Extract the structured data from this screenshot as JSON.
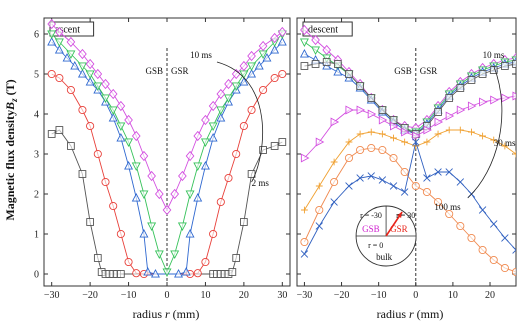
{
  "figure": {
    "ylabel_text": "Magnetic flux density",
    "ylabel_var": "B",
    "ylabel_sub": "z",
    "ylabel_unit": " (T)",
    "xlabel_text": "radius ",
    "xlabel_var": "r",
    "xlabel_unit": " (mm)"
  },
  "chart_data": [
    {
      "type": "line",
      "panel_label": "ascent",
      "xlim": [
        -32,
        32
      ],
      "ylim": [
        -0.3,
        6.4
      ],
      "xticks": [
        -30,
        -20,
        -10,
        0,
        10,
        20,
        30
      ],
      "yticks": [
        0,
        1,
        2,
        3,
        4,
        5,
        6
      ],
      "grid": false,
      "divider_x": 0,
      "region_labels": [
        "GSB",
        "GSR"
      ],
      "annotations": [
        {
          "text": "10 ms",
          "x": 6,
          "y": 5.4
        },
        {
          "text": "2 ms",
          "x": 22,
          "y": 2.2
        }
      ],
      "series": [
        {
          "color": "#555555",
          "marker": "square",
          "x": [
            -30,
            -28,
            -25,
            -22,
            -20,
            -18,
            -17,
            -16,
            -15,
            -14,
            -13,
            -12,
            12,
            13,
            14,
            15,
            16,
            17,
            18,
            20,
            22,
            25,
            28,
            30
          ],
          "y": [
            3.5,
            3.6,
            3.2,
            2.5,
            1.3,
            0.4,
            0.05,
            0,
            0,
            0,
            0,
            0,
            0,
            0,
            0,
            0,
            0,
            0.05,
            0.4,
            1.3,
            2.5,
            3.1,
            3.2,
            3.3
          ]
        },
        {
          "color": "#e8403a",
          "marker": "circle",
          "x": [
            -30,
            -28,
            -25,
            -22,
            -20,
            -18,
            -16,
            -14,
            -12,
            -10,
            -8,
            -6,
            6,
            8,
            10,
            12,
            14,
            16,
            18,
            20,
            22,
            25,
            28,
            30
          ],
          "y": [
            5.0,
            4.9,
            4.6,
            4.1,
            3.7,
            3.0,
            2.3,
            1.7,
            1.0,
            0.3,
            0.02,
            0,
            0,
            0.02,
            0.3,
            1.0,
            1.8,
            2.4,
            3.0,
            3.7,
            4.1,
            4.6,
            4.9,
            5.0
          ]
        },
        {
          "color": "#2f68d0",
          "marker": "triangle",
          "x": [
            -30,
            -28,
            -26,
            -24,
            -22,
            -20,
            -18,
            -16,
            -14,
            -12,
            -10,
            -8,
            -6,
            -5,
            -3,
            3,
            5,
            6,
            8,
            10,
            12,
            14,
            16,
            18,
            20,
            22,
            24,
            26,
            28,
            30
          ],
          "y": [
            5.8,
            5.6,
            5.4,
            5.2,
            5.0,
            4.8,
            4.6,
            4.3,
            3.9,
            3.4,
            2.7,
            1.9,
            1.0,
            0.05,
            0,
            0,
            0.05,
            1.0,
            1.9,
            2.7,
            3.4,
            3.9,
            4.3,
            4.6,
            4.8,
            5.0,
            5.2,
            5.4,
            5.6,
            5.8
          ]
        },
        {
          "color": "#36c25a",
          "marker": "triangle-down",
          "x": [
            -30,
            -28,
            -25,
            -22,
            -20,
            -18,
            -16,
            -14,
            -12,
            -10,
            -8,
            -6,
            -4,
            -2,
            0,
            2,
            4,
            6,
            8,
            10,
            12,
            14,
            16,
            18,
            20,
            22,
            25,
            28,
            30
          ],
          "y": [
            6.0,
            5.8,
            5.5,
            5.2,
            5.0,
            4.7,
            4.4,
            4.1,
            3.7,
            3.3,
            2.7,
            2.0,
            1.2,
            0.5,
            0.05,
            0.5,
            1.2,
            2.0,
            2.7,
            3.3,
            3.7,
            4.1,
            4.4,
            4.7,
            5.0,
            5.2,
            5.5,
            5.8,
            6.0
          ]
        },
        {
          "color": "#d34fe0",
          "marker": "diamond",
          "x": [
            -30,
            -28,
            -25,
            -22,
            -20,
            -18,
            -16,
            -14,
            -12,
            -10,
            -8,
            -6,
            -4,
            -2,
            0,
            2,
            4,
            6,
            8,
            10,
            12,
            14,
            16,
            18,
            20,
            22,
            25,
            28,
            30
          ],
          "y": [
            6.25,
            6.05,
            5.8,
            5.5,
            5.25,
            5.0,
            4.75,
            4.5,
            4.2,
            3.85,
            3.45,
            2.95,
            2.45,
            2.0,
            1.6,
            2.0,
            2.45,
            2.95,
            3.45,
            3.85,
            4.2,
            4.5,
            4.75,
            5.0,
            5.2,
            5.45,
            5.7,
            5.9,
            6.05
          ]
        }
      ]
    },
    {
      "type": "line",
      "panel_label": "descent",
      "xlim": [
        -32,
        27
      ],
      "ylim": [
        -0.3,
        6.4
      ],
      "xticks": [
        -30,
        -20,
        -10,
        0,
        10,
        20
      ],
      "yticks": [
        0,
        1,
        2,
        3,
        4,
        5,
        6
      ],
      "grid": false,
      "divider_x": 0,
      "region_labels": [
        "GSB",
        "GSR"
      ],
      "annotations": [
        {
          "text": "10 ms",
          "x": 18,
          "y": 5.4
        },
        {
          "text": "30 ms",
          "x": 21,
          "y": 3.2
        },
        {
          "text": "100 ms",
          "x": 5,
          "y": 1.6
        }
      ],
      "inset": {
        "labels": [
          "r = -30",
          "r = 30",
          "GSB",
          "GSR",
          "r = 0",
          "bulk"
        ],
        "colors": {
          "GSB": "#d021d0",
          "GSR": "#e8241a",
          "arrow": "#e8241a"
        }
      },
      "series": [
        {
          "color": "#d34fe0",
          "marker": "diamond",
          "x": [
            -30,
            -27,
            -24,
            -21,
            -18,
            -15,
            -12,
            -9,
            -6,
            -3,
            0,
            3,
            6,
            9,
            12,
            15,
            18,
            21,
            24,
            27
          ],
          "y": [
            6.1,
            5.85,
            5.6,
            5.35,
            5.05,
            4.75,
            4.4,
            4.1,
            3.85,
            3.7,
            3.65,
            3.85,
            4.2,
            4.55,
            4.8,
            5.0,
            5.15,
            5.25,
            5.35,
            5.4
          ]
        },
        {
          "color": "#36c25a",
          "marker": "triangle-down",
          "x": [
            -30,
            -27,
            -24,
            -21,
            -18,
            -15,
            -12,
            -9,
            -6,
            -3,
            0,
            3,
            6,
            9,
            12,
            15,
            18,
            21,
            24,
            27
          ],
          "y": [
            5.8,
            5.6,
            5.4,
            5.2,
            5.0,
            4.7,
            4.4,
            4.1,
            3.85,
            3.65,
            3.55,
            3.8,
            4.15,
            4.5,
            4.75,
            4.95,
            5.1,
            5.2,
            5.3,
            5.35
          ]
        },
        {
          "color": "#2f68d0",
          "marker": "triangle",
          "x": [
            -30,
            -27,
            -24,
            -21,
            -18,
            -15,
            -12,
            -9,
            -6,
            -3,
            0,
            3,
            6,
            9,
            12,
            15,
            18,
            21,
            24,
            27
          ],
          "y": [
            5.5,
            5.35,
            5.2,
            5.05,
            4.9,
            4.65,
            4.35,
            4.05,
            3.8,
            3.6,
            3.5,
            3.75,
            4.1,
            4.45,
            4.7,
            4.9,
            5.05,
            5.15,
            5.25,
            5.3
          ]
        },
        {
          "color": "#555555",
          "marker": "square",
          "x": [
            -30,
            -27,
            -24,
            -21,
            -18,
            -15,
            -12,
            -9,
            -6,
            -3,
            0,
            3,
            6,
            9,
            12,
            15,
            18,
            21,
            24,
            27
          ],
          "y": [
            5.2,
            5.25,
            5.3,
            5.25,
            5.0,
            4.7,
            4.4,
            4.1,
            3.85,
            3.65,
            3.5,
            3.7,
            4.05,
            4.4,
            4.65,
            4.85,
            5.0,
            5.1,
            5.2,
            5.25
          ]
        },
        {
          "color": "#d34fe0",
          "marker": "triangle-right",
          "x": [
            -30,
            -26,
            -22,
            -18,
            -15,
            -12,
            -9,
            -6,
            -3,
            0,
            3,
            6,
            9,
            12,
            15,
            18,
            21,
            24,
            27
          ],
          "y": [
            2.9,
            3.3,
            3.8,
            4.1,
            4.1,
            4.0,
            3.85,
            3.7,
            3.55,
            3.45,
            3.6,
            3.8,
            3.95,
            4.1,
            4.2,
            4.3,
            4.35,
            4.4,
            4.45
          ]
        },
        {
          "color": "#f0a030",
          "marker": "plus",
          "x": [
            -30,
            -26,
            -22,
            -18,
            -15,
            -12,
            -9,
            -6,
            -3,
            0,
            3,
            6,
            9,
            12,
            15,
            18,
            21,
            24,
            27
          ],
          "y": [
            1.6,
            2.2,
            2.8,
            3.3,
            3.5,
            3.55,
            3.5,
            3.4,
            3.3,
            3.2,
            3.3,
            3.5,
            3.6,
            3.6,
            3.55,
            3.45,
            3.35,
            3.2,
            3.0
          ]
        },
        {
          "color": "#f08a50",
          "marker": "circle",
          "x": [
            -30,
            -26,
            -22,
            -18,
            -15,
            -12,
            -9,
            -6,
            -3,
            0,
            3,
            6,
            9,
            12,
            15,
            18,
            21,
            24,
            27
          ],
          "y": [
            0.8,
            1.6,
            2.3,
            2.9,
            3.1,
            3.15,
            3.1,
            2.9,
            2.55,
            2.2,
            2.05,
            1.8,
            1.5,
            1.2,
            0.9,
            0.6,
            0.35,
            0.15,
            0.05
          ]
        },
        {
          "color": "#3060c0",
          "marker": "cross",
          "x": [
            -30,
            -26,
            -22,
            -18,
            -15,
            -12,
            -9,
            -6,
            -3,
            0,
            3,
            6,
            9,
            12,
            15,
            18,
            21,
            24,
            27
          ],
          "y": [
            0.5,
            1.2,
            1.8,
            2.2,
            2.4,
            2.45,
            2.35,
            2.2,
            2.05,
            3.3,
            2.4,
            2.55,
            2.55,
            2.3,
            2.0,
            1.6,
            1.25,
            0.9,
            0.6
          ]
        }
      ]
    }
  ]
}
